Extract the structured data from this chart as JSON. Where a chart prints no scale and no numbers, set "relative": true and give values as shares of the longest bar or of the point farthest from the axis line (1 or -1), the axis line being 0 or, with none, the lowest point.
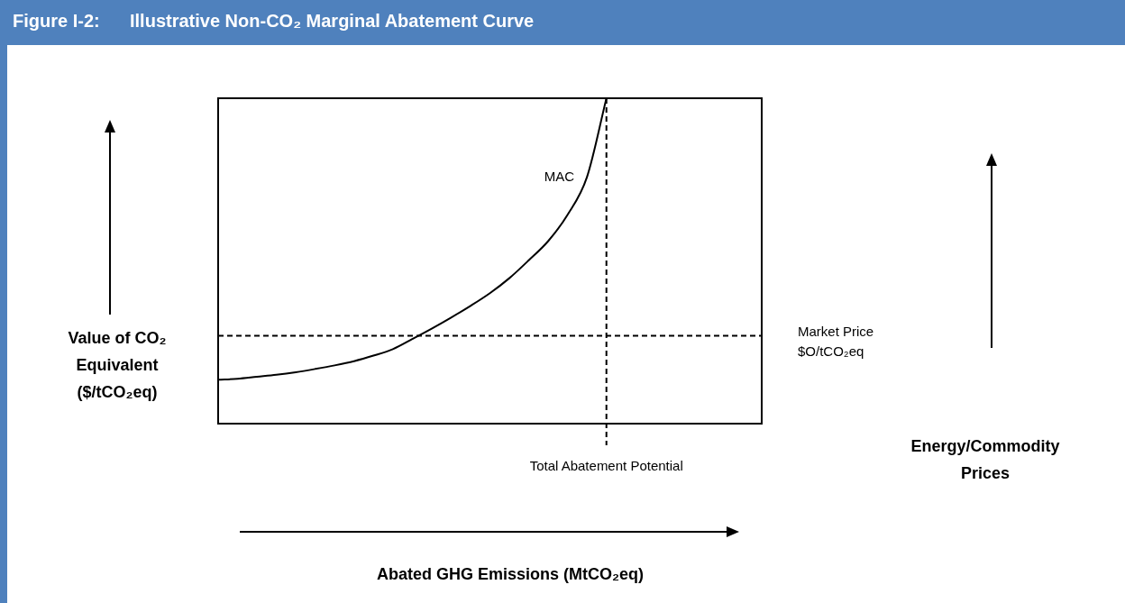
{
  "chart_data": {
    "type": "line",
    "title": "Figure I-2:      Illustrative Non-CO₂ Marginal Abatement Curve",
    "ylabel": "Value of CO₂\nEquivalent\n($/tCO₂eq)",
    "annotations": [
      "Energy/Commodity Prices",
      "Abated GHG Emissions (MtCO₂eq)"
    ],
    "relative": true,
    "categories": [
      null,
      null,
      null,
      null,
      null,
      null,
      null,
      null,
      null,
      null,
      null,
      null,
      null,
      null,
      null,
      null,
      null,
      null,
      null,
      null,
      null,
      null,
      null,
      null,
      null,
      null,
      null,
      null,
      null
    ],
    "series": [
      {
        "name": "MAC",
        "color": "#000000",
        "values": [
          0.135,
          0.138,
          0.144,
          0.15,
          0.158,
          0.168,
          0.179,
          0.192,
          0.209,
          0.229,
          0.26,
          0.292,
          0.326,
          0.362,
          0.401,
          0.447,
          0.502,
          0.561,
          0.642,
          0.758,
          1,
          null,
          null,
          null,
          null,
          null,
          null,
          null,
          null
        ]
      }
    ],
    "ref_lines": [
      {
        "axis": "y",
        "value": 0.27,
        "label": "Market Price\n$O/tCO₂eq",
        "line_style": "dashed",
        "color": "#000000"
      },
      {
        "axis": "x",
        "label": "Total Abatement Potential",
        "line_style": "dashed",
        "color": "#000000"
      }
    ],
    "marker": "none",
    "line_style": "solid",
    "legend": false
  }
}
